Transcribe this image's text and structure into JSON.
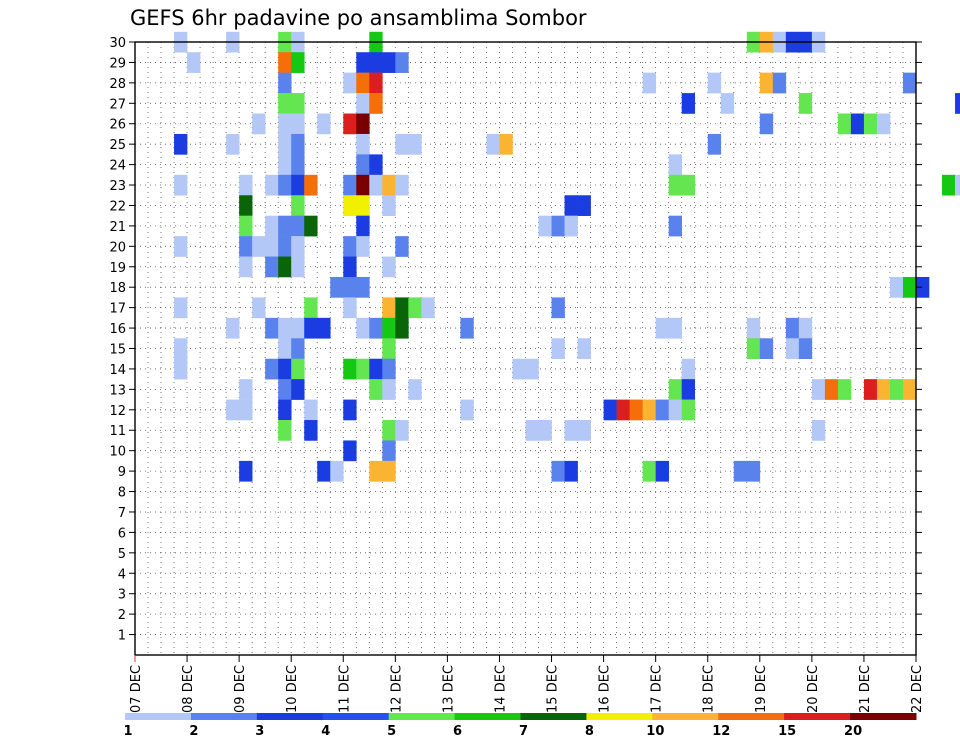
{
  "chart_data": {
    "type": "heatmap",
    "title": "GEFS 6hr padavine po ansamblima Sombor",
    "xlabel": "",
    "ylabel": "",
    "x_ticks": [
      "07 DEC",
      "08 DEC",
      "09 DEC",
      "10 DEC",
      "11 DEC",
      "12 DEC",
      "13 DEC",
      "14 DEC",
      "15 DEC",
      "16 DEC",
      "17 DEC",
      "18 DEC",
      "19 DEC",
      "20 DEC",
      "21 DEC",
      "22 DEC"
    ],
    "y_ticks": [
      "1",
      "2",
      "3",
      "4",
      "5",
      "6",
      "7",
      "8",
      "9",
      "10",
      "11",
      "12",
      "13",
      "14",
      "15",
      "16",
      "17",
      "18",
      "19",
      "20",
      "21",
      "22",
      "23",
      "24",
      "25",
      "26",
      "27",
      "28",
      "29",
      "30"
    ],
    "xlim": [
      "07 DEC 00h",
      "22 DEC 00h"
    ],
    "ylim": [
      0,
      30
    ],
    "time_step_hours": 6,
    "grid": true,
    "legend_position": "bottom",
    "color_scale": {
      "levels": [
        "1",
        "2",
        "3",
        "4",
        "5",
        "6",
        "7",
        "8",
        "10",
        "12",
        "15",
        "20"
      ],
      "colors": [
        "#b4c8f8",
        "#5a82ec",
        "#1a3ce0",
        "#2850f0",
        "#64e650",
        "#14c814",
        "#0a640a",
        "#f0f000",
        "#fab432",
        "#f56e0a",
        "#dc1e1e",
        "#780000"
      ]
    },
    "cells": [
      {
        "member": 30,
        "time": "07 DEC 18h",
        "value": 1
      },
      {
        "member": 30,
        "time": "08 DEC 18h",
        "value": 1
      },
      {
        "member": 30,
        "time": "09 DEC 18h",
        "value": 5
      },
      {
        "member": 30,
        "time": "10 DEC 00h",
        "value": 1
      },
      {
        "member": 30,
        "time": "11 DEC 12h",
        "value": 6
      },
      {
        "member": 30,
        "time": "18 DEC 18h",
        "value": 5
      },
      {
        "member": 30,
        "time": "19 DEC 00h",
        "value": 10
      },
      {
        "member": 30,
        "time": "19 DEC 06h",
        "value": 1
      },
      {
        "member": 30,
        "time": "19 DEC 12h",
        "value": 3
      },
      {
        "member": 30,
        "time": "19 DEC 18h",
        "value": 3
      },
      {
        "member": 30,
        "time": "20 DEC 00h",
        "value": 1
      },
      {
        "member": 29,
        "time": "08 DEC 00h",
        "value": 1
      },
      {
        "member": 29,
        "time": "09 DEC 18h",
        "value": 12
      },
      {
        "member": 29,
        "time": "10 DEC 00h",
        "value": 6
      },
      {
        "member": 29,
        "time": "11 DEC 06h",
        "value": 3
      },
      {
        "member": 29,
        "time": "11 DEC 12h",
        "value": 3
      },
      {
        "member": 29,
        "time": "11 DEC 18h",
        "value": 3
      },
      {
        "member": 29,
        "time": "12 DEC 00h",
        "value": 2
      },
      {
        "member": 28,
        "time": "09 DEC 18h",
        "value": 2
      },
      {
        "member": 28,
        "time": "11 DEC 00h",
        "value": 1
      },
      {
        "member": 28,
        "time": "11 DEC 06h",
        "value": 12
      },
      {
        "member": 28,
        "time": "11 DEC 12h",
        "value": 15
      },
      {
        "member": 28,
        "time": "16 DEC 18h",
        "value": 1
      },
      {
        "member": 28,
        "time": "18 DEC 00h",
        "value": 1
      },
      {
        "member": 28,
        "time": "19 DEC 00h",
        "value": 10
      },
      {
        "member": 28,
        "time": "19 DEC 06h",
        "value": 2
      },
      {
        "member": 28,
        "time": "21 DEC 18h",
        "value": 2
      },
      {
        "member": 27,
        "time": "09 DEC 18h",
        "value": 5
      },
      {
        "member": 27,
        "time": "10 DEC 00h",
        "value": 5
      },
      {
        "member": 27,
        "time": "11 DEC 06h",
        "value": 1
      },
      {
        "member": 27,
        "time": "11 DEC 12h",
        "value": 12
      },
      {
        "member": 27,
        "time": "17 DEC 12h",
        "value": 3
      },
      {
        "member": 27,
        "time": "18 DEC 06h",
        "value": 1
      },
      {
        "member": 27,
        "time": "19 DEC 18h",
        "value": 5
      },
      {
        "member": 27,
        "time": "22 DEC 18h",
        "value": 3
      },
      {
        "member": 26,
        "time": "09 DEC 06h",
        "value": 1
      },
      {
        "member": 26,
        "time": "09 DEC 18h",
        "value": 1
      },
      {
        "member": 26,
        "time": "10 DEC 00h",
        "value": 1
      },
      {
        "member": 26,
        "time": "10 DEC 12h",
        "value": 1
      },
      {
        "member": 26,
        "time": "11 DEC 00h",
        "value": 15
      },
      {
        "member": 26,
        "time": "11 DEC 06h",
        "value": 20
      },
      {
        "member": 26,
        "time": "19 DEC 00h",
        "value": 2
      },
      {
        "member": 26,
        "time": "20 DEC 12h",
        "value": 5
      },
      {
        "member": 26,
        "time": "20 DEC 18h",
        "value": 3
      },
      {
        "member": 26,
        "time": "21 DEC 00h",
        "value": 5
      },
      {
        "member": 26,
        "time": "21 DEC 06h",
        "value": 1
      },
      {
        "member": 25,
        "time": "07 DEC 18h",
        "value": 3
      },
      {
        "member": 25,
        "time": "08 DEC 18h",
        "value": 1
      },
      {
        "member": 25,
        "time": "09 DEC 18h",
        "value": 1
      },
      {
        "member": 25,
        "time": "10 DEC 00h",
        "value": 2
      },
      {
        "member": 25,
        "time": "11 DEC 06h",
        "value": 1
      },
      {
        "member": 25,
        "time": "12 DEC 00h",
        "value": 1
      },
      {
        "member": 25,
        "time": "12 DEC 06h",
        "value": 1
      },
      {
        "member": 25,
        "time": "13 DEC 18h",
        "value": 1
      },
      {
        "member": 25,
        "time": "14 DEC 00h",
        "value": 10
      },
      {
        "member": 25,
        "time": "18 DEC 00h",
        "value": 2
      },
      {
        "member": 24,
        "time": "09 DEC 18h",
        "value": 1
      },
      {
        "member": 24,
        "time": "10 DEC 00h",
        "value": 2
      },
      {
        "member": 24,
        "time": "11 DEC 06h",
        "value": 2
      },
      {
        "member": 24,
        "time": "11 DEC 12h",
        "value": 3
      },
      {
        "member": 24,
        "time": "17 DEC 06h",
        "value": 1
      },
      {
        "member": 23,
        "time": "07 DEC 18h",
        "value": 1
      },
      {
        "member": 23,
        "time": "09 DEC 00h",
        "value": 1
      },
      {
        "member": 23,
        "time": "09 DEC 12h",
        "value": 1
      },
      {
        "member": 23,
        "time": "09 DEC 18h",
        "value": 2
      },
      {
        "member": 23,
        "time": "10 DEC 00h",
        "value": 3
      },
      {
        "member": 23,
        "time": "10 DEC 06h",
        "value": 12
      },
      {
        "member": 23,
        "time": "11 DEC 00h",
        "value": 2
      },
      {
        "member": 23,
        "time": "11 DEC 06h",
        "value": 20
      },
      {
        "member": 23,
        "time": "11 DEC 12h",
        "value": 1
      },
      {
        "member": 23,
        "time": "11 DEC 18h",
        "value": 10
      },
      {
        "member": 23,
        "time": "12 DEC 00h",
        "value": 1
      },
      {
        "member": 23,
        "time": "17 DEC 06h",
        "value": 5
      },
      {
        "member": 23,
        "time": "17 DEC 12h",
        "value": 5
      },
      {
        "member": 23,
        "time": "22 DEC 12h",
        "value": 6
      },
      {
        "member": 23,
        "time": "22 DEC 18h",
        "value": 1
      },
      {
        "member": 22,
        "time": "09 DEC 00h",
        "value": 7
      },
      {
        "member": 22,
        "time": "10 DEC 00h",
        "value": 5
      },
      {
        "member": 22,
        "time": "11 DEC 00h",
        "value": 8
      },
      {
        "member": 22,
        "time": "11 DEC 06h",
        "value": 8
      },
      {
        "member": 22,
        "time": "11 DEC 18h",
        "value": 1
      },
      {
        "member": 22,
        "time": "15 DEC 06h",
        "value": 3
      },
      {
        "member": 22,
        "time": "15 DEC 12h",
        "value": 3
      },
      {
        "member": 21,
        "time": "09 DEC 00h",
        "value": 5
      },
      {
        "member": 21,
        "time": "09 DEC 12h",
        "value": 1
      },
      {
        "member": 21,
        "time": "09 DEC 18h",
        "value": 2
      },
      {
        "member": 21,
        "time": "10 DEC 00h",
        "value": 2
      },
      {
        "member": 21,
        "time": "10 DEC 06h",
        "value": 7
      },
      {
        "member": 21,
        "time": "11 DEC 06h",
        "value": 3
      },
      {
        "member": 21,
        "time": "14 DEC 18h",
        "value": 1
      },
      {
        "member": 21,
        "time": "15 DEC 00h",
        "value": 2
      },
      {
        "member": 21,
        "time": "15 DEC 06h",
        "value": 1
      },
      {
        "member": 21,
        "time": "17 DEC 06h",
        "value": 2
      },
      {
        "member": 20,
        "time": "07 DEC 18h",
        "value": 1
      },
      {
        "member": 20,
        "time": "09 DEC 00h",
        "value": 2
      },
      {
        "member": 20,
        "time": "09 DEC 06h",
        "value": 1
      },
      {
        "member": 20,
        "time": "09 DEC 12h",
        "value": 1
      },
      {
        "member": 20,
        "time": "09 DEC 18h",
        "value": 2
      },
      {
        "member": 20,
        "time": "10 DEC 00h",
        "value": 1
      },
      {
        "member": 20,
        "time": "11 DEC 00h",
        "value": 2
      },
      {
        "member": 20,
        "time": "11 DEC 06h",
        "value": 1
      },
      {
        "member": 20,
        "time": "12 DEC 00h",
        "value": 2
      },
      {
        "member": 19,
        "time": "09 DEC 00h",
        "value": 1
      },
      {
        "member": 19,
        "time": "09 DEC 12h",
        "value": 2
      },
      {
        "member": 19,
        "time": "09 DEC 18h",
        "value": 7
      },
      {
        "member": 19,
        "time": "10 DEC 00h",
        "value": 1
      },
      {
        "member": 19,
        "time": "11 DEC 00h",
        "value": 3
      },
      {
        "member": 19,
        "time": "11 DEC 18h",
        "value": 1
      },
      {
        "member": 18,
        "time": "10 DEC 18h",
        "value": 2
      },
      {
        "member": 18,
        "time": "11 DEC 00h",
        "value": 2
      },
      {
        "member": 18,
        "time": "11 DEC 06h",
        "value": 2
      },
      {
        "member": 18,
        "time": "21 DEC 12h",
        "value": 1
      },
      {
        "member": 18,
        "time": "21 DEC 18h",
        "value": 6
      },
      {
        "member": 18,
        "time": "22 DEC 00h",
        "value": 3
      },
      {
        "member": 17,
        "time": "07 DEC 18h",
        "value": 1
      },
      {
        "member": 17,
        "time": "09 DEC 06h",
        "value": 1
      },
      {
        "member": 17,
        "time": "10 DEC 06h",
        "value": 5
      },
      {
        "member": 17,
        "time": "11 DEC 00h",
        "value": 1
      },
      {
        "member": 17,
        "time": "11 DEC 18h",
        "value": 10
      },
      {
        "member": 17,
        "time": "12 DEC 00h",
        "value": 7
      },
      {
        "member": 17,
        "time": "12 DEC 06h",
        "value": 5
      },
      {
        "member": 17,
        "time": "12 DEC 12h",
        "value": 1
      },
      {
        "member": 17,
        "time": "15 DEC 00h",
        "value": 2
      },
      {
        "member": 16,
        "time": "08 DEC 18h",
        "value": 1
      },
      {
        "member": 16,
        "time": "09 DEC 12h",
        "value": 2
      },
      {
        "member": 16,
        "time": "09 DEC 18h",
        "value": 1
      },
      {
        "member": 16,
        "time": "10 DEC 00h",
        "value": 1
      },
      {
        "member": 16,
        "time": "10 DEC 06h",
        "value": 3
      },
      {
        "member": 16,
        "time": "10 DEC 12h",
        "value": 3
      },
      {
        "member": 16,
        "time": "11 DEC 06h",
        "value": 1
      },
      {
        "member": 16,
        "time": "11 DEC 12h",
        "value": 2
      },
      {
        "member": 16,
        "time": "11 DEC 18h",
        "value": 6
      },
      {
        "member": 16,
        "time": "12 DEC 00h",
        "value": 7
      },
      {
        "member": 16,
        "time": "13 DEC 06h",
        "value": 2
      },
      {
        "member": 16,
        "time": "17 DEC 00h",
        "value": 1
      },
      {
        "member": 16,
        "time": "17 DEC 06h",
        "value": 1
      },
      {
        "member": 16,
        "time": "18 DEC 18h",
        "value": 1
      },
      {
        "member": 16,
        "time": "19 DEC 12h",
        "value": 2
      },
      {
        "member": 16,
        "time": "19 DEC 18h",
        "value": 1
      },
      {
        "member": 15,
        "time": "07 DEC 18h",
        "value": 1
      },
      {
        "member": 15,
        "time": "09 DEC 18h",
        "value": 1
      },
      {
        "member": 15,
        "time": "10 DEC 00h",
        "value": 2
      },
      {
        "member": 15,
        "time": "11 DEC 18h",
        "value": 5
      },
      {
        "member": 15,
        "time": "15 DEC 00h",
        "value": 1
      },
      {
        "member": 15,
        "time": "15 DEC 12h",
        "value": 1
      },
      {
        "member": 15,
        "time": "18 DEC 18h",
        "value": 5
      },
      {
        "member": 15,
        "time": "19 DEC 00h",
        "value": 2
      },
      {
        "member": 15,
        "time": "19 DEC 12h",
        "value": 1
      },
      {
        "member": 15,
        "time": "19 DEC 18h",
        "value": 2
      },
      {
        "member": 14,
        "time": "07 DEC 18h",
        "value": 1
      },
      {
        "member": 14,
        "time": "09 DEC 12h",
        "value": 2
      },
      {
        "member": 14,
        "time": "09 DEC 18h",
        "value": 3
      },
      {
        "member": 14,
        "time": "10 DEC 00h",
        "value": 5
      },
      {
        "member": 14,
        "time": "11 DEC 00h",
        "value": 6
      },
      {
        "member": 14,
        "time": "11 DEC 06h",
        "value": 5
      },
      {
        "member": 14,
        "time": "11 DEC 12h",
        "value": 3
      },
      {
        "member": 14,
        "time": "11 DEC 18h",
        "value": 2
      },
      {
        "member": 14,
        "time": "14 DEC 06h",
        "value": 1
      },
      {
        "member": 14,
        "time": "14 DEC 12h",
        "value": 1
      },
      {
        "member": 14,
        "time": "17 DEC 12h",
        "value": 1
      },
      {
        "member": 13,
        "time": "09 DEC 00h",
        "value": 1
      },
      {
        "member": 13,
        "time": "09 DEC 18h",
        "value": 2
      },
      {
        "member": 13,
        "time": "10 DEC 00h",
        "value": 3
      },
      {
        "member": 13,
        "time": "11 DEC 12h",
        "value": 5
      },
      {
        "member": 13,
        "time": "11 DEC 18h",
        "value": 1
      },
      {
        "member": 13,
        "time": "12 DEC 06h",
        "value": 1
      },
      {
        "member": 13,
        "time": "17 DEC 06h",
        "value": 5
      },
      {
        "member": 13,
        "time": "17 DEC 12h",
        "value": 3
      },
      {
        "member": 13,
        "time": "20 DEC 00h",
        "value": 1
      },
      {
        "member": 13,
        "time": "20 DEC 06h",
        "value": 12
      },
      {
        "member": 13,
        "time": "20 DEC 12h",
        "value": 5
      },
      {
        "member": 13,
        "time": "21 DEC 00h",
        "value": 15
      },
      {
        "member": 13,
        "time": "21 DEC 06h",
        "value": 10
      },
      {
        "member": 13,
        "time": "21 DEC 12h",
        "value": 5
      },
      {
        "member": 13,
        "time": "21 DEC 18h",
        "value": 10
      },
      {
        "member": 12,
        "time": "08 DEC 18h",
        "value": 1
      },
      {
        "member": 12,
        "time": "09 DEC 00h",
        "value": 1
      },
      {
        "member": 12,
        "time": "09 DEC 18h",
        "value": 3
      },
      {
        "member": 12,
        "time": "10 DEC 06h",
        "value": 1
      },
      {
        "member": 12,
        "time": "11 DEC 00h",
        "value": 3
      },
      {
        "member": 12,
        "time": "13 DEC 06h",
        "value": 1
      },
      {
        "member": 12,
        "time": "16 DEC 00h",
        "value": 3
      },
      {
        "member": 12,
        "time": "16 DEC 06h",
        "value": 15
      },
      {
        "member": 12,
        "time": "16 DEC 12h",
        "value": 12
      },
      {
        "member": 12,
        "time": "16 DEC 18h",
        "value": 10
      },
      {
        "member": 12,
        "time": "17 DEC 00h",
        "value": 2
      },
      {
        "member": 12,
        "time": "17 DEC 06h",
        "value": 1
      },
      {
        "member": 12,
        "time": "17 DEC 12h",
        "value": 5
      },
      {
        "member": 11,
        "time": "09 DEC 18h",
        "value": 5
      },
      {
        "member": 11,
        "time": "10 DEC 06h",
        "value": 3
      },
      {
        "member": 11,
        "time": "11 DEC 18h",
        "value": 5
      },
      {
        "member": 11,
        "time": "12 DEC 00h",
        "value": 1
      },
      {
        "member": 11,
        "time": "14 DEC 12h",
        "value": 1
      },
      {
        "member": 11,
        "time": "14 DEC 18h",
        "value": 1
      },
      {
        "member": 11,
        "time": "15 DEC 06h",
        "value": 1
      },
      {
        "member": 11,
        "time": "15 DEC 12h",
        "value": 1
      },
      {
        "member": 11,
        "time": "20 DEC 00h",
        "value": 1
      },
      {
        "member": 10,
        "time": "11 DEC 00h",
        "value": 3
      },
      {
        "member": 10,
        "time": "11 DEC 18h",
        "value": 2
      },
      {
        "member": 9,
        "time": "09 DEC 00h",
        "value": 3
      },
      {
        "member": 9,
        "time": "10 DEC 12h",
        "value": 3
      },
      {
        "member": 9,
        "time": "10 DEC 18h",
        "value": 1
      },
      {
        "member": 9,
        "time": "11 DEC 12h",
        "value": 10
      },
      {
        "member": 9,
        "time": "11 DEC 18h",
        "value": 10
      },
      {
        "member": 9,
        "time": "15 DEC 00h",
        "value": 2
      },
      {
        "member": 9,
        "time": "15 DEC 06h",
        "value": 3
      },
      {
        "member": 9,
        "time": "16 DEC 18h",
        "value": 5
      },
      {
        "member": 9,
        "time": "17 DEC 00h",
        "value": 3
      },
      {
        "member": 9,
        "time": "18 DEC 12h",
        "value": 2
      },
      {
        "member": 9,
        "time": "18 DEC 18h",
        "value": 2
      }
    ]
  }
}
